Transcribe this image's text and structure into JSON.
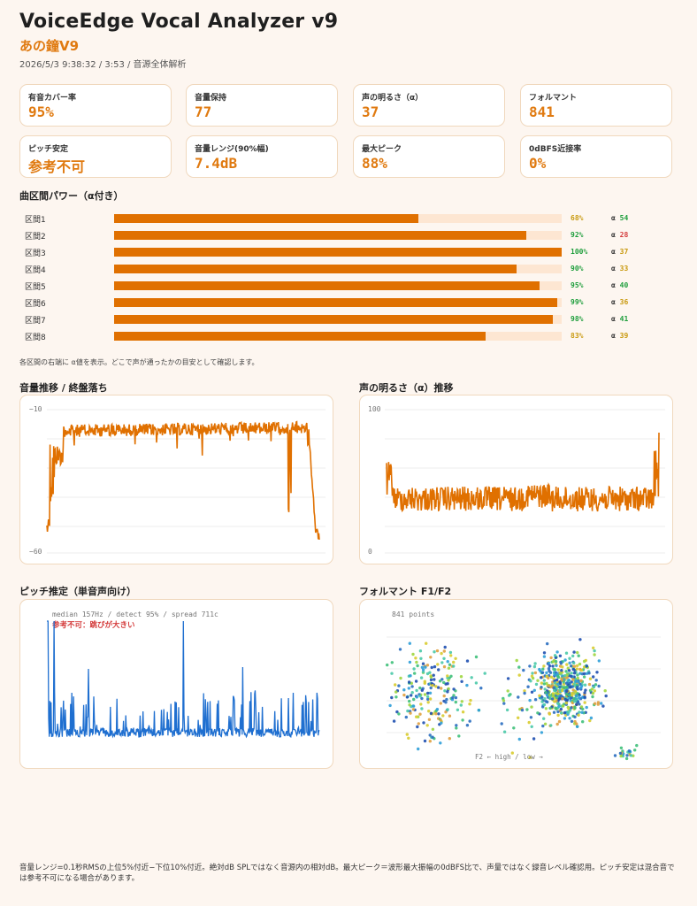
{
  "header": {
    "title": "VoiceEdge Vocal Analyzer v9",
    "song": "あの鐘V9",
    "meta": "2026/5/3 9:38:32 / 3:53 / 音源全体解析"
  },
  "cards": [
    {
      "label": "有音カバー率",
      "value": "95%"
    },
    {
      "label": "音量保持",
      "value": "77"
    },
    {
      "label": "声の明るさ（α）",
      "value": "37"
    },
    {
      "label": "フォルマント",
      "value": "841"
    },
    {
      "label": "ピッチ安定",
      "value": "参考不可"
    },
    {
      "label": "音量レンジ(90%幅)",
      "value": "7.4dB"
    },
    {
      "label": "最大ピーク",
      "value": "88%"
    },
    {
      "label": "0dBFS近接率",
      "value": "0%"
    }
  ],
  "segments_title": "曲区間パワー（α付き）",
  "segments": [
    {
      "label": "区間1",
      "pct": "68%",
      "power": 68,
      "alpha_symbol": "α",
      "alpha": "54",
      "pct_color": "#c99a10",
      "alpha_color": "#1e9e3c"
    },
    {
      "label": "区間2",
      "pct": "92%",
      "power": 92,
      "alpha_symbol": "α",
      "alpha": "28",
      "pct_color": "#1e9e3c",
      "alpha_color": "#d43c3c"
    },
    {
      "label": "区間3",
      "pct": "100%",
      "power": 100,
      "alpha_symbol": "α",
      "alpha": "37",
      "pct_color": "#1e9e3c",
      "alpha_color": "#c99a10"
    },
    {
      "label": "区間4",
      "pct": "90%",
      "power": 90,
      "alpha_symbol": "α",
      "alpha": "33",
      "pct_color": "#1e9e3c",
      "alpha_color": "#c99a10"
    },
    {
      "label": "区間5",
      "pct": "95%",
      "power": 95,
      "alpha_symbol": "α",
      "alpha": "40",
      "pct_color": "#1e9e3c",
      "alpha_color": "#1e9e3c"
    },
    {
      "label": "区間6",
      "pct": "99%",
      "power": 99,
      "alpha_symbol": "α",
      "alpha": "36",
      "pct_color": "#1e9e3c",
      "alpha_color": "#c99a10"
    },
    {
      "label": "区間7",
      "pct": "98%",
      "power": 98,
      "alpha_symbol": "α",
      "alpha": "41",
      "pct_color": "#1e9e3c",
      "alpha_color": "#1e9e3c"
    },
    {
      "label": "区間8",
      "pct": "83%",
      "power": 83,
      "alpha_symbol": "α",
      "alpha": "39",
      "pct_color": "#c99a10",
      "alpha_color": "#c99a10"
    }
  ],
  "segments_note": "各区間の右端に α値を表示。どこで声が通ったかの目安として確認します。",
  "charts": {
    "volume": {
      "title": "音量推移 / 終盤落ち",
      "ymax_label": "−10",
      "ymin_label": "−60",
      "color": "#e07000"
    },
    "brightness": {
      "title": "声の明るさ（α）推移",
      "ymax_label": "100",
      "ymin_label": "0",
      "color": "#e07000"
    },
    "pitch": {
      "title": "ピッチ推定（単音声向け）",
      "stats": "median 157Hz / detect 95% / spread 711c",
      "warning": "参考不可：跳びが大きい",
      "color": "#1f6fd0"
    },
    "formant": {
      "title": "フォルマント F1/F2",
      "count_label": "841 points",
      "axis_hint": "F2 ← high / low →"
    }
  },
  "footer": "音量レンジ=0.1秒RMSの上位5%付近−下位10%付近。絶対dB SPLではなく音源内の相対dB。最大ピーク＝波形最大振幅の0dBFS比で、声量ではなく録音レベル確認用。ピッチ安定は混合音では参考不可になる場合があります。"
}
